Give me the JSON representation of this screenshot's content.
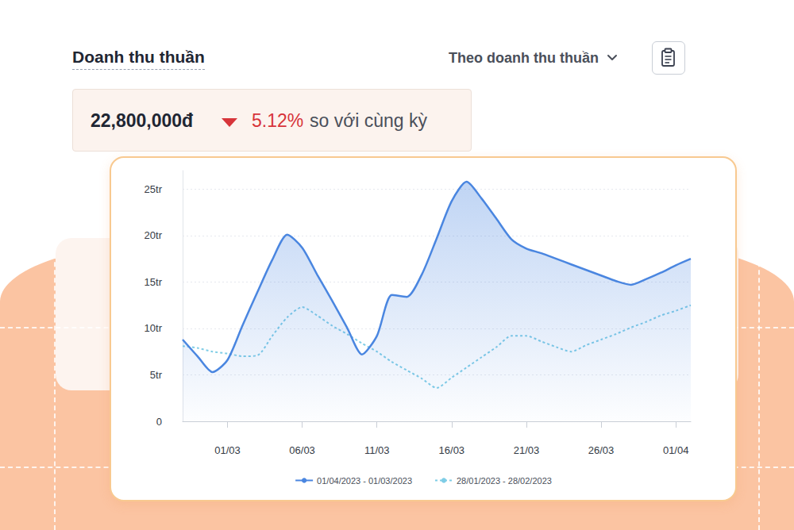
{
  "header": {
    "title": "Doanh thu thuần",
    "dropdown": "Theo doanh thu thuần"
  },
  "summary": {
    "value": "22,800,000đ",
    "change": "5.12%",
    "direction": "down",
    "comparison": "so với cùng kỳ"
  },
  "chart_data": {
    "type": "line",
    "categories": [
      null,
      null,
      null,
      "01/03",
      null,
      null,
      null,
      null,
      "06/03",
      null,
      null,
      null,
      null,
      "11/03",
      null,
      null,
      null,
      null,
      "16/03",
      null,
      null,
      null,
      null,
      "21/03",
      null,
      null,
      null,
      null,
      "26/03",
      null,
      null,
      null,
      null,
      "01/04",
      null
    ],
    "series": [
      {
        "name": "01/04/2023 - 01/03/2023",
        "type": "area",
        "color": "#4a86e0",
        "line_style": "solid",
        "marker": "none",
        "values": [
          8.8,
          7.0,
          5.3,
          6.6,
          10.3,
          13.9,
          17.4,
          20.1,
          18.7,
          15.8,
          13.0,
          10.1,
          7.2,
          9.2,
          13.6,
          13.4,
          15.8,
          19.7,
          23.7,
          25.8,
          24.0,
          21.8,
          19.6,
          18.6,
          18.1,
          17.5,
          16.9,
          16.3,
          15.7,
          15.1,
          14.7,
          15.3,
          16.0,
          16.8,
          17.5
        ]
      },
      {
        "name": "28/01/2023 - 28/02/2023",
        "type": "line",
        "color": "#7fcde6",
        "line_style": "dotted",
        "marker": "none",
        "values": [
          8.1,
          7.9,
          7.5,
          7.3,
          7.0,
          7.1,
          9.2,
          11.2,
          12.3,
          11.4,
          10.3,
          9.4,
          8.4,
          7.5,
          6.4,
          5.5,
          4.6,
          3.6,
          4.7,
          5.8,
          6.9,
          8.0,
          9.2,
          9.2,
          8.6,
          8.0,
          7.5,
          8.2,
          8.8,
          9.4,
          10.1,
          10.7,
          11.4,
          11.9,
          12.5
        ]
      }
    ],
    "ylim": [
      0,
      27
    ],
    "yticks": [
      0,
      {
        "value": 5,
        "label": "5tr"
      },
      {
        "value": 10,
        "label": "10tr"
      },
      {
        "value": 15,
        "label": "15tr"
      },
      {
        "value": 20,
        "label": "20tr"
      },
      {
        "value": 25,
        "label": "25tr"
      }
    ],
    "grid": true,
    "legend": "bottom"
  }
}
